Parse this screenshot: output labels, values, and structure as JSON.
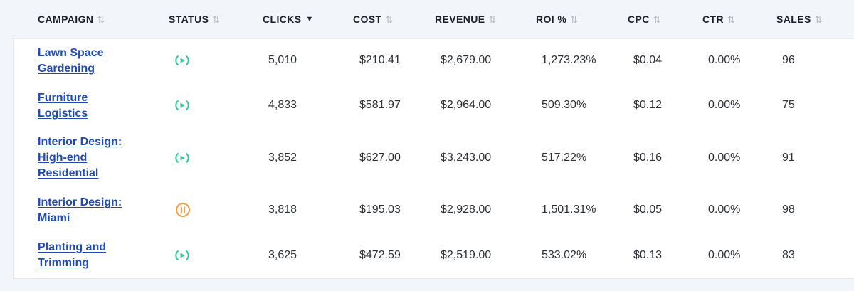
{
  "header": {
    "columns": [
      {
        "key": "campaign",
        "label": "CAMPAIGN",
        "sorted": false
      },
      {
        "key": "status",
        "label": "STATUS",
        "sorted": false
      },
      {
        "key": "clicks",
        "label": "CLICKS",
        "sorted": true
      },
      {
        "key": "cost",
        "label": "COST",
        "sorted": false
      },
      {
        "key": "revenue",
        "label": "REVENUE",
        "sorted": false
      },
      {
        "key": "roi",
        "label": "ROI %",
        "sorted": false
      },
      {
        "key": "cpc",
        "label": "CPC",
        "sorted": false
      },
      {
        "key": "ctr",
        "label": "CTR",
        "sorted": false
      },
      {
        "key": "sales",
        "label": "SALES",
        "sorted": false
      }
    ]
  },
  "icons": {
    "sort": "sort-arrows-icon",
    "sort_active": "sort-desc-icon",
    "status_active": "broadcast-icon",
    "status_paused": "pause-circle-icon"
  },
  "colors": {
    "link": "#1f49b6",
    "status_active": "#2fc99a",
    "status_paused": "#f0a04b",
    "background": "#f2f6fa"
  },
  "rows": [
    {
      "campaign": [
        "Lawn Space",
        "Gardening"
      ],
      "status": "active",
      "clicks": "5,010",
      "cost": "$210.41",
      "revenue": "$2,679.00",
      "roi": "1,273.23%",
      "cpc": "$0.04",
      "ctr": "0.00%",
      "sales": "96"
    },
    {
      "campaign": [
        "Furniture",
        "Logistics"
      ],
      "status": "active",
      "clicks": "4,833",
      "cost": "$581.97",
      "revenue": "$2,964.00",
      "roi": "509.30%",
      "cpc": "$0.12",
      "ctr": "0.00%",
      "sales": "75"
    },
    {
      "campaign": [
        "Interior Design:",
        "High-end",
        "Residential"
      ],
      "status": "active",
      "clicks": "3,852",
      "cost": "$627.00",
      "revenue": "$3,243.00",
      "roi": "517.22%",
      "cpc": "$0.16",
      "ctr": "0.00%",
      "sales": "91"
    },
    {
      "campaign": [
        "Interior Design:",
        "Miami"
      ],
      "status": "paused",
      "clicks": "3,818",
      "cost": "$195.03",
      "revenue": "$2,928.00",
      "roi": "1,501.31%",
      "cpc": "$0.05",
      "ctr": "0.00%",
      "sales": "98"
    },
    {
      "campaign": [
        "Planting and",
        "Trimming"
      ],
      "status": "active",
      "clicks": "3,625",
      "cost": "$472.59",
      "revenue": "$2,519.00",
      "roi": "533.02%",
      "cpc": "$0.13",
      "ctr": "0.00%",
      "sales": "83"
    }
  ]
}
